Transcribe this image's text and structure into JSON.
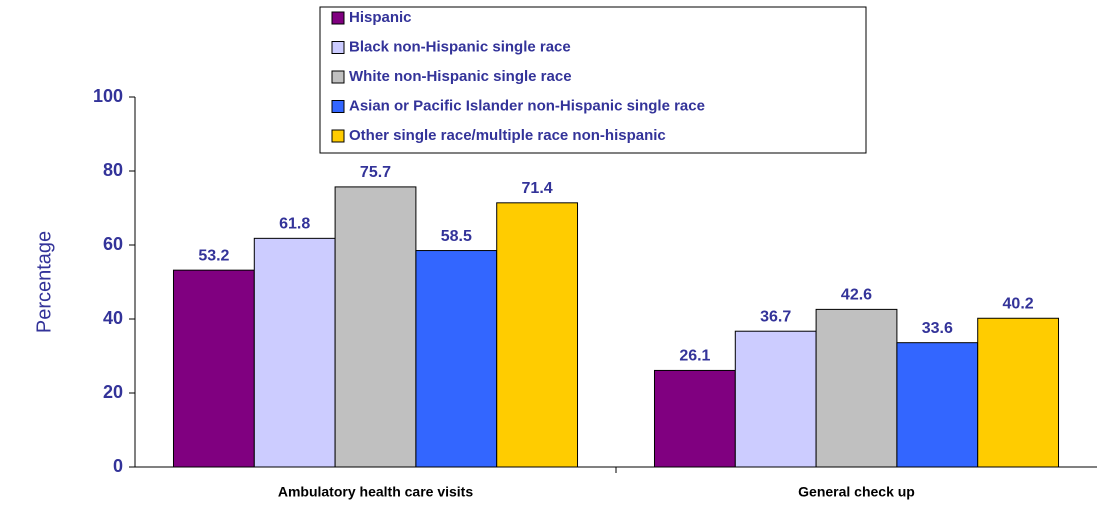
{
  "chart_data": {
    "type": "bar",
    "y_label": "Percentage",
    "categories": [
      "Ambulatory health care visits",
      "General check up"
    ],
    "series": [
      {
        "name": "Hispanic",
        "color": "#800080",
        "values": [
          53.2,
          26.1
        ]
      },
      {
        "name": "Black non-Hispanic single race",
        "color": "#ccccff",
        "values": [
          61.8,
          36.7
        ]
      },
      {
        "name": "White non-Hispanic single race",
        "color": "#c0c0c0",
        "values": [
          75.7,
          42.6
        ]
      },
      {
        "name": "Asian or Pacific Islander non-Hispanic single race",
        "color": "#3366ff",
        "values": [
          58.5,
          33.6
        ]
      },
      {
        "name": "Other single race/multiple race non-hispanic",
        "color": "#ffcc00",
        "values": [
          71.4,
          40.2
        ]
      }
    ],
    "ylim": [
      0,
      100
    ],
    "yticks": [
      0,
      20,
      40,
      60,
      80,
      100
    ],
    "legend": "top"
  }
}
